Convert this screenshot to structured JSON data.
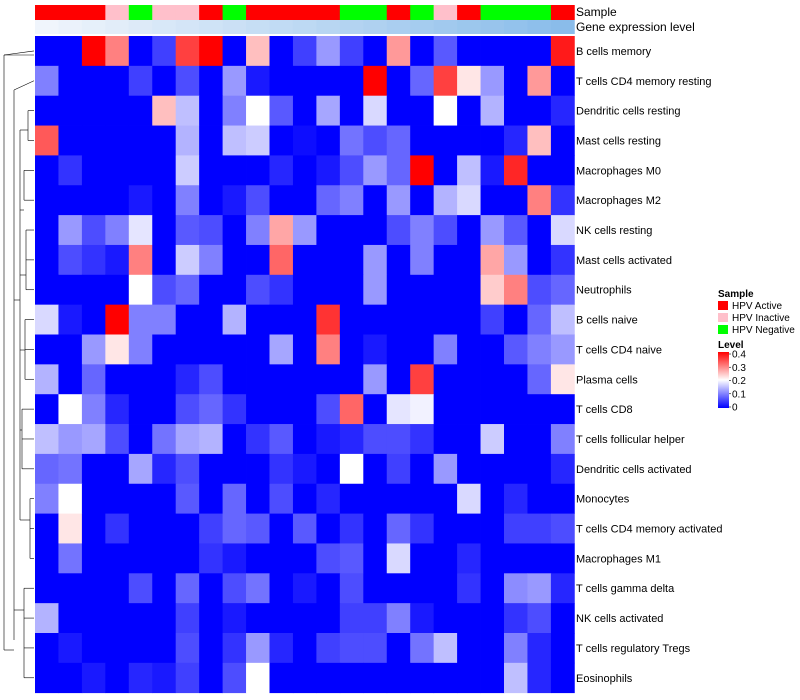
{
  "chart_data": {
    "type": "heatmap",
    "annotation_tracks": {
      "sample_label": "Sample",
      "expression_label": "Gene expression level"
    },
    "sample_groups": [
      "Active",
      "Active",
      "Active",
      "Inactive",
      "Negative",
      "Inactive",
      "Inactive",
      "Active",
      "Negative",
      "Active",
      "Active",
      "Active",
      "Active",
      "Negative",
      "Negative",
      "Active",
      "Negative",
      "Inactive",
      "Active",
      "Negative",
      "Negative",
      "Negative",
      "Active"
    ],
    "gene_expression_scale": [
      0.02,
      0.06,
      0.1,
      0.14,
      0.18,
      0.22,
      0.26,
      0.3,
      0.34,
      0.38,
      0.42,
      0.46,
      0.5,
      0.54,
      0.58,
      0.62,
      0.66,
      0.7,
      0.74,
      0.78,
      0.82,
      0.86,
      0.9
    ],
    "rows": [
      {
        "label": "B cells memory",
        "values": [
          0,
          0,
          0.4,
          0.3,
          0,
          0.05,
          0.35,
          0.4,
          0,
          0.25,
          0,
          0.05,
          0.12,
          0.05,
          0,
          0.28,
          0,
          0.07,
          0,
          0,
          0,
          0,
          0.38
        ]
      },
      {
        "label": "T cells CD4 memory resting",
        "values": [
          0.1,
          0,
          0,
          0,
          0.05,
          0,
          0.06,
          0,
          0.12,
          0.02,
          0,
          0,
          0,
          0,
          0.4,
          0,
          0.08,
          0.35,
          0.22,
          0.12,
          0,
          0.28,
          0
        ]
      },
      {
        "label": "Dendritic cells resting",
        "values": [
          0,
          0,
          0,
          0,
          0,
          0.25,
          0.15,
          0,
          0.1,
          0.2,
          0.07,
          0,
          0.13,
          0,
          0.17,
          0,
          0,
          0.2,
          0,
          0.14,
          0,
          0,
          0.03
        ]
      },
      {
        "label": "Mast cells resting",
        "values": [
          0.33,
          0,
          0,
          0,
          0,
          0,
          0.14,
          0,
          0.15,
          0.16,
          0,
          0.01,
          0,
          0.09,
          0.06,
          0.08,
          0,
          0,
          0,
          0,
          0.03,
          0.25,
          0
        ]
      },
      {
        "label": "Macrophages M0",
        "values": [
          0,
          0.04,
          0,
          0,
          0,
          0,
          0.16,
          0,
          0,
          0,
          0.03,
          0,
          0.02,
          0.06,
          0.12,
          0.08,
          0.4,
          0,
          0.15,
          0.02,
          0.37,
          0,
          0
        ]
      },
      {
        "label": "Macrophages M2",
        "values": [
          0,
          0,
          0,
          0,
          0.02,
          0,
          0.1,
          0,
          0.02,
          0.06,
          0,
          0,
          0.08,
          0.1,
          0,
          0.12,
          0,
          0.14,
          0.17,
          0,
          0,
          0.3,
          0.04
        ]
      },
      {
        "label": "NK cells resting",
        "values": [
          0,
          0.12,
          0.06,
          0.1,
          0.18,
          0,
          0.07,
          0.06,
          0,
          0.1,
          0.27,
          0.12,
          0,
          0,
          0,
          0.06,
          0.1,
          0.06,
          0,
          0.12,
          0.07,
          0,
          0.17
        ]
      },
      {
        "label": "Mast cells activated",
        "values": [
          0,
          0.06,
          0.04,
          0.02,
          0.3,
          0,
          0.16,
          0.1,
          0,
          0,
          0.32,
          0,
          0,
          0,
          0.12,
          0,
          0.1,
          0,
          0,
          0.27,
          0.12,
          0,
          0.04
        ]
      },
      {
        "label": "Neutrophils",
        "values": [
          0,
          0,
          0,
          0,
          0.2,
          0.06,
          0.08,
          0,
          0,
          0.06,
          0.04,
          0,
          0,
          0,
          0.12,
          0,
          0,
          0,
          0,
          0.24,
          0.3,
          0.06,
          0.08
        ]
      },
      {
        "label": "B cells naive",
        "values": [
          0.17,
          0.02,
          0,
          0.4,
          0.1,
          0.1,
          0,
          0,
          0.14,
          0,
          0,
          0,
          0.36,
          0,
          0,
          0,
          0,
          0,
          0,
          0.05,
          0,
          0.08,
          0.15
        ]
      },
      {
        "label": "T cells CD4 naive",
        "values": [
          0,
          0,
          0.12,
          0.22,
          0.1,
          0,
          0,
          0,
          0,
          0,
          0.13,
          0,
          0.3,
          0,
          0.02,
          0,
          0,
          0.1,
          0,
          0,
          0.07,
          0.1,
          0.12
        ]
      },
      {
        "label": "Plasma cells",
        "values": [
          0.14,
          0,
          0.08,
          0,
          0,
          0,
          0.03,
          0.06,
          0,
          0,
          0,
          0,
          0,
          0,
          0.12,
          0,
          0.35,
          0,
          0,
          0,
          0,
          0.08,
          0.22
        ]
      },
      {
        "label": "T cells CD8",
        "values": [
          0,
          0.2,
          0.1,
          0.03,
          0,
          0,
          0.06,
          0.08,
          0.04,
          0,
          0,
          0,
          0.06,
          0.32,
          0,
          0.18,
          0.19,
          0,
          0,
          0,
          0,
          0,
          0
        ]
      },
      {
        "label": "T cells follicular helper",
        "values": [
          0.15,
          0.12,
          0.13,
          0.06,
          0,
          0.09,
          0.13,
          0.14,
          0,
          0.04,
          0.07,
          0,
          0.02,
          0.03,
          0.06,
          0.06,
          0.04,
          0,
          0,
          0.16,
          0,
          0,
          0.1
        ]
      },
      {
        "label": "Dendritic cells activated",
        "values": [
          0.08,
          0.09,
          0,
          0,
          0.13,
          0.03,
          0.06,
          0,
          0,
          0,
          0.04,
          0.02,
          0,
          0.2,
          0,
          0.05,
          0,
          0.12,
          0,
          0,
          0,
          0,
          0.03
        ]
      },
      {
        "label": "Monocytes",
        "values": [
          0.1,
          0.2,
          0,
          0,
          0,
          0,
          0.07,
          0,
          0.08,
          0,
          0.06,
          0,
          0.03,
          0,
          0,
          0,
          0,
          0,
          0.17,
          0,
          0.03,
          0,
          0
        ]
      },
      {
        "label": "T cells CD4 memory activated",
        "values": [
          0,
          0.22,
          0,
          0.04,
          0,
          0,
          0,
          0.05,
          0.08,
          0.07,
          0,
          0.07,
          0,
          0.04,
          0,
          0.08,
          0.04,
          0,
          0,
          0,
          0.05,
          0.05,
          0.06
        ]
      },
      {
        "label": "Macrophages M1",
        "values": [
          0,
          0.09,
          0,
          0,
          0,
          0,
          0,
          0.04,
          0.02,
          0,
          0,
          0,
          0.06,
          0.07,
          0,
          0.17,
          0,
          0,
          0.03,
          0,
          0,
          0,
          0
        ]
      },
      {
        "label": "T cells gamma delta",
        "values": [
          0,
          0,
          0,
          0,
          0.06,
          0,
          0.08,
          0,
          0.06,
          0.09,
          0,
          0.02,
          0,
          0.06,
          0,
          0,
          0,
          0,
          0.04,
          0,
          0.11,
          0.12,
          0.03
        ]
      },
      {
        "label": "NK cells activated",
        "values": [
          0.14,
          0,
          0,
          0,
          0,
          0,
          0.05,
          0,
          0.02,
          0,
          0,
          0,
          0,
          0.05,
          0.05,
          0.1,
          0.02,
          0,
          0,
          0,
          0.04,
          0.06,
          0
        ]
      },
      {
        "label": "T cells regulatory  Tregs",
        "values": [
          0,
          0.02,
          0,
          0,
          0,
          0,
          0.06,
          0,
          0.04,
          0.12,
          0.03,
          0,
          0.05,
          0.06,
          0.06,
          0,
          0.09,
          0.15,
          0,
          0,
          0.1,
          0.03,
          0
        ]
      },
      {
        "label": "Eosinophils",
        "values": [
          0,
          0,
          0.02,
          0,
          0.03,
          0.02,
          0.05,
          0,
          0.06,
          0.2,
          0,
          0,
          0,
          0,
          0,
          0,
          0,
          0,
          0,
          0,
          0.15,
          0.03,
          0
        ]
      }
    ],
    "legend": {
      "sample_title": "Sample",
      "sample_items": [
        {
          "label": "HPV Active",
          "color": "#ff0000"
        },
        {
          "label": "HPV Inactive",
          "color": "#ffc0cb"
        },
        {
          "label": "HPV Negative",
          "color": "#00ff00"
        }
      ],
      "level_title": "Level",
      "level_ticks": [
        "0.4",
        "0.3",
        "0.2",
        "0.1",
        "0"
      ],
      "range": [
        0,
        0.4
      ]
    },
    "colors": {
      "low": "#0000ff",
      "mid": "#ffffff",
      "high": "#ff0000",
      "active": "#ff0000",
      "inactive": "#ffc0cb",
      "negative": "#00ff00"
    }
  }
}
